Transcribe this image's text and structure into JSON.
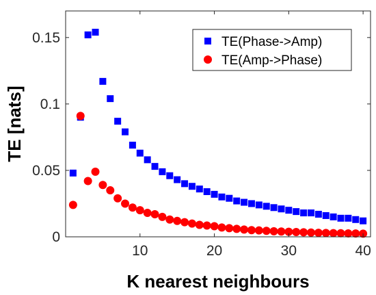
{
  "chart_data": {
    "type": "scatter",
    "title": "",
    "xlabel": "K nearest neighbours",
    "ylabel": "TE [nats]",
    "xlim": [
      0,
      41
    ],
    "ylim": [
      0,
      0.17
    ],
    "xticks": [
      10,
      20,
      30,
      40
    ],
    "xtick_labels": [
      "10",
      "20",
      "30",
      "40"
    ],
    "yticks": [
      0,
      0.05,
      0.1,
      0.15
    ],
    "ytick_labels": [
      "0",
      "0.05",
      "0.1",
      "0.15"
    ],
    "grid": false,
    "legend_position": "top-right",
    "series": [
      {
        "name": "TE(Phase->Amp)",
        "marker": "square",
        "color": "#0000ff",
        "x": [
          1,
          2,
          3,
          4,
          5,
          6,
          7,
          8,
          9,
          10,
          11,
          12,
          13,
          14,
          15,
          16,
          17,
          18,
          19,
          20,
          21,
          22,
          23,
          24,
          25,
          26,
          27,
          28,
          29,
          30,
          31,
          32,
          33,
          34,
          35,
          36,
          37,
          38,
          39,
          40
        ],
        "y": [
          0.048,
          0.09,
          0.152,
          0.154,
          0.117,
          0.104,
          0.087,
          0.079,
          0.069,
          0.063,
          0.058,
          0.053,
          0.049,
          0.046,
          0.043,
          0.04,
          0.038,
          0.036,
          0.034,
          0.032,
          0.03,
          0.029,
          0.027,
          0.026,
          0.025,
          0.024,
          0.023,
          0.022,
          0.021,
          0.02,
          0.019,
          0.018,
          0.018,
          0.017,
          0.016,
          0.015,
          0.014,
          0.014,
          0.013,
          0.012
        ]
      },
      {
        "name": "TE(Amp->Phase)",
        "marker": "circle",
        "color": "#ff0000",
        "x": [
          1,
          2,
          3,
          4,
          5,
          6,
          7,
          8,
          9,
          10,
          11,
          12,
          13,
          14,
          15,
          16,
          17,
          18,
          19,
          20,
          21,
          22,
          23,
          24,
          25,
          26,
          27,
          28,
          29,
          30,
          31,
          32,
          33,
          34,
          35,
          36,
          37,
          38,
          39,
          40
        ],
        "y": [
          0.024,
          0.091,
          0.042,
          0.049,
          0.039,
          0.035,
          0.029,
          0.025,
          0.022,
          0.02,
          0.018,
          0.017,
          0.015,
          0.013,
          0.012,
          0.011,
          0.01,
          0.009,
          0.0085,
          0.008,
          0.007,
          0.0065,
          0.006,
          0.0055,
          0.005,
          0.0048,
          0.0045,
          0.0042,
          0.004,
          0.0038,
          0.0036,
          0.0034,
          0.0032,
          0.003,
          0.0029,
          0.0028,
          0.0027,
          0.0026,
          0.0025,
          0.0024
        ]
      }
    ]
  }
}
